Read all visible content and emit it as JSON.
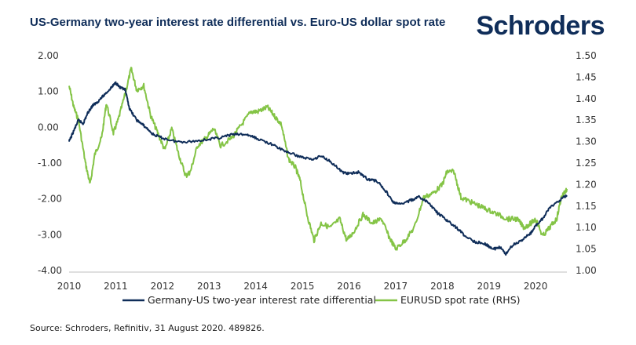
{
  "title": "US-Germany two-year interest rate differential vs. Euro-US dollar spot rate",
  "brand": {
    "logo_text": "Schroders",
    "color": "#0f2d59"
  },
  "source": "Source: Schroders, Refinitiv, 31 August 2020. 489826.",
  "chart_data": {
    "type": "line",
    "title": "US-Germany two-year interest rate differential vs. Euro-US dollar spot rate",
    "x_ticks": [
      "2010",
      "2011",
      "2012",
      "2013",
      "2014",
      "2015",
      "2016",
      "2017",
      "2018",
      "2019",
      "2020"
    ],
    "xlim": [
      2010.0,
      2020.67
    ],
    "y_left": {
      "ylim": [
        -4.0,
        2.0
      ],
      "ticks": [
        "2.00",
        "1.00",
        "0.00",
        "-1.00",
        "-2.00",
        "-3.00",
        "-4.00"
      ]
    },
    "y_right": {
      "ylim": [
        1.0,
        1.5
      ],
      "ticks": [
        "1.50",
        "1.45",
        "1.40",
        "1.35",
        "1.30",
        "1.25",
        "1.20",
        "1.15",
        "1.10",
        "1.05",
        "1.00"
      ]
    },
    "legend_position": "bottom",
    "grid": false,
    "series": [
      {
        "name": "Germany-US two-year interest rate differential",
        "axis": "left",
        "color": "#0f2d59",
        "points": [
          [
            2010.0,
            -0.4
          ],
          [
            2010.1,
            -0.1
          ],
          [
            2010.2,
            0.2
          ],
          [
            2010.3,
            0.1
          ],
          [
            2010.4,
            0.4
          ],
          [
            2010.5,
            0.6
          ],
          [
            2010.6,
            0.7
          ],
          [
            2010.75,
            0.9
          ],
          [
            2010.9,
            1.1
          ],
          [
            2011.0,
            1.25
          ],
          [
            2011.1,
            1.1
          ],
          [
            2011.2,
            1.05
          ],
          [
            2011.3,
            0.5
          ],
          [
            2011.45,
            0.2
          ],
          [
            2011.6,
            0.05
          ],
          [
            2011.8,
            -0.2
          ],
          [
            2012.0,
            -0.3
          ],
          [
            2012.3,
            -0.4
          ],
          [
            2012.6,
            -0.4
          ],
          [
            2012.9,
            -0.35
          ],
          [
            2013.2,
            -0.3
          ],
          [
            2013.5,
            -0.2
          ],
          [
            2013.8,
            -0.2
          ],
          [
            2014.0,
            -0.3
          ],
          [
            2014.3,
            -0.45
          ],
          [
            2014.6,
            -0.65
          ],
          [
            2014.9,
            -0.8
          ],
          [
            2015.2,
            -0.9
          ],
          [
            2015.4,
            -0.8
          ],
          [
            2015.6,
            -0.95
          ],
          [
            2015.85,
            -1.25
          ],
          [
            2016.0,
            -1.3
          ],
          [
            2016.2,
            -1.25
          ],
          [
            2016.4,
            -1.45
          ],
          [
            2016.6,
            -1.5
          ],
          [
            2016.8,
            -1.8
          ],
          [
            2016.95,
            -2.1
          ],
          [
            2017.1,
            -2.15
          ],
          [
            2017.3,
            -2.05
          ],
          [
            2017.5,
            -1.95
          ],
          [
            2017.7,
            -2.1
          ],
          [
            2017.9,
            -2.4
          ],
          [
            2018.1,
            -2.6
          ],
          [
            2018.3,
            -2.8
          ],
          [
            2018.5,
            -3.05
          ],
          [
            2018.7,
            -3.2
          ],
          [
            2018.9,
            -3.25
          ],
          [
            2019.1,
            -3.4
          ],
          [
            2019.25,
            -3.35
          ],
          [
            2019.35,
            -3.55
          ],
          [
            2019.5,
            -3.3
          ],
          [
            2019.7,
            -3.15
          ],
          [
            2019.9,
            -2.95
          ],
          [
            2020.0,
            -2.75
          ],
          [
            2020.15,
            -2.55
          ],
          [
            2020.3,
            -2.25
          ],
          [
            2020.5,
            -2.05
          ],
          [
            2020.67,
            -1.9
          ]
        ]
      },
      {
        "name": "EURUSD spot rate (RHS)",
        "axis": "right",
        "color": "#84c446",
        "points": [
          [
            2010.0,
            1.43
          ],
          [
            2010.1,
            1.38
          ],
          [
            2010.2,
            1.35
          ],
          [
            2010.35,
            1.25
          ],
          [
            2010.45,
            1.2
          ],
          [
            2010.55,
            1.27
          ],
          [
            2010.7,
            1.31
          ],
          [
            2010.8,
            1.39
          ],
          [
            2010.95,
            1.32
          ],
          [
            2011.05,
            1.35
          ],
          [
            2011.2,
            1.41
          ],
          [
            2011.33,
            1.47
          ],
          [
            2011.45,
            1.42
          ],
          [
            2011.6,
            1.43
          ],
          [
            2011.75,
            1.36
          ],
          [
            2011.9,
            1.32
          ],
          [
            2012.05,
            1.28
          ],
          [
            2012.2,
            1.33
          ],
          [
            2012.35,
            1.27
          ],
          [
            2012.5,
            1.22
          ],
          [
            2012.6,
            1.23
          ],
          [
            2012.75,
            1.29
          ],
          [
            2012.95,
            1.31
          ],
          [
            2013.1,
            1.33
          ],
          [
            2013.25,
            1.29
          ],
          [
            2013.5,
            1.31
          ],
          [
            2013.7,
            1.34
          ],
          [
            2013.9,
            1.37
          ],
          [
            2014.05,
            1.37
          ],
          [
            2014.25,
            1.38
          ],
          [
            2014.4,
            1.36
          ],
          [
            2014.55,
            1.34
          ],
          [
            2014.7,
            1.26
          ],
          [
            2014.85,
            1.24
          ],
          [
            2014.95,
            1.21
          ],
          [
            2015.1,
            1.13
          ],
          [
            2015.25,
            1.07
          ],
          [
            2015.4,
            1.11
          ],
          [
            2015.6,
            1.1
          ],
          [
            2015.8,
            1.12
          ],
          [
            2015.95,
            1.07
          ],
          [
            2016.1,
            1.09
          ],
          [
            2016.3,
            1.13
          ],
          [
            2016.5,
            1.11
          ],
          [
            2016.7,
            1.12
          ],
          [
            2016.85,
            1.08
          ],
          [
            2017.0,
            1.05
          ],
          [
            2017.2,
            1.07
          ],
          [
            2017.4,
            1.1
          ],
          [
            2017.6,
            1.17
          ],
          [
            2017.8,
            1.18
          ],
          [
            2018.0,
            1.2
          ],
          [
            2018.1,
            1.23
          ],
          [
            2018.25,
            1.23
          ],
          [
            2018.4,
            1.17
          ],
          [
            2018.6,
            1.16
          ],
          [
            2018.8,
            1.15
          ],
          [
            2019.0,
            1.14
          ],
          [
            2019.2,
            1.13
          ],
          [
            2019.4,
            1.12
          ],
          [
            2019.6,
            1.12
          ],
          [
            2019.75,
            1.1
          ],
          [
            2019.9,
            1.11
          ],
          [
            2020.0,
            1.12
          ],
          [
            2020.15,
            1.08
          ],
          [
            2020.3,
            1.1
          ],
          [
            2020.45,
            1.12
          ],
          [
            2020.55,
            1.17
          ],
          [
            2020.67,
            1.19
          ]
        ]
      }
    ]
  }
}
